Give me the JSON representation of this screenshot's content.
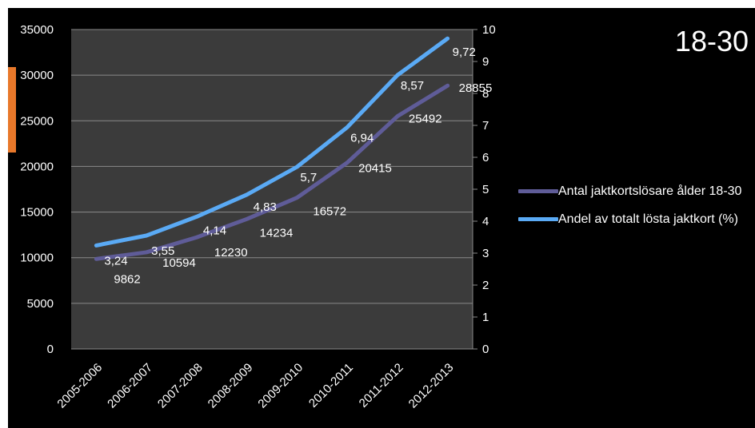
{
  "title": "18-30",
  "chart_data": {
    "type": "line",
    "categories": [
      "2005-2006",
      "2006-2007",
      "2007-2008",
      "2008-2009",
      "2009-2010",
      "2010-2011",
      "2011-2012",
      "2012-2013"
    ],
    "y_left": {
      "min": 0,
      "max": 35000,
      "step": 5000,
      "ticks": [
        "0",
        "5000",
        "10000",
        "15000",
        "20000",
        "25000",
        "30000",
        "35000"
      ]
    },
    "y_right": {
      "min": 0,
      "max": 10,
      "step": 1,
      "ticks": [
        "0",
        "1",
        "2",
        "3",
        "4",
        "5",
        "6",
        "7",
        "8",
        "9",
        "10"
      ]
    },
    "grid": true,
    "legend_position": "right",
    "series": [
      {
        "name": "Antal jaktkortslösare ålder 18-30",
        "axis": "left",
        "color": "#5f5c98",
        "values": [
          9862,
          10594,
          12230,
          14234,
          16572,
          20415,
          25492,
          28855
        ],
        "labels": [
          "9862",
          "10594",
          "12230",
          "14234",
          "16572",
          "20415",
          "25492",
          "28855"
        ]
      },
      {
        "name": "Andel av totalt lösta jaktkort (%)",
        "axis": "right",
        "color": "#5aaaf5",
        "values": [
          3.24,
          3.55,
          4.14,
          4.83,
          5.7,
          6.94,
          8.57,
          9.72
        ],
        "labels": [
          "3,24",
          "3,55",
          "4,14",
          "4,83",
          "5,7",
          "6,94",
          "8,57",
          "9,72"
        ]
      }
    ]
  }
}
